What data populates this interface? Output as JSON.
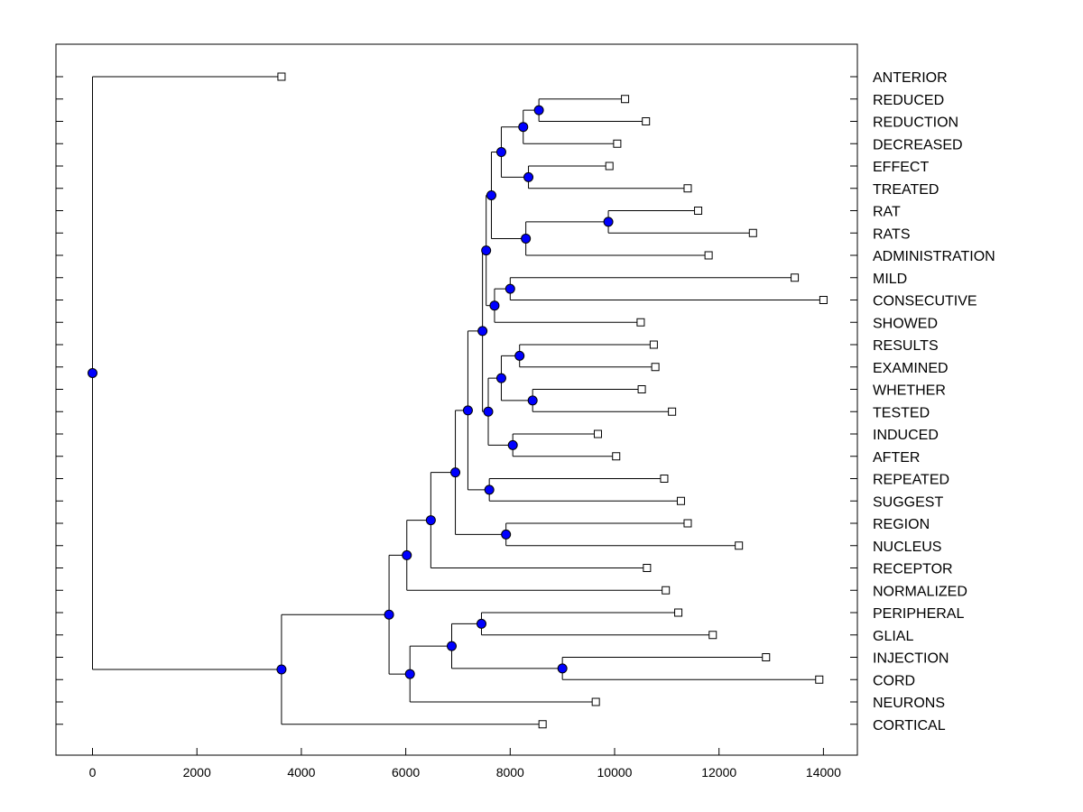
{
  "chart_data": {
    "type": "dendrogram",
    "x_ticks": [
      0,
      2000,
      4000,
      6000,
      8000,
      10000,
      12000,
      14000
    ],
    "x_range": [
      -700,
      14650
    ],
    "node_color": "#0000ff",
    "leaves": [
      {
        "label": "ANTERIOR",
        "x": 3620
      },
      {
        "label": "REDUCED",
        "x": 10200
      },
      {
        "label": "REDUCTION",
        "x": 10600
      },
      {
        "label": "DECREASED",
        "x": 10050
      },
      {
        "label": "EFFECT",
        "x": 9900
      },
      {
        "label": "TREATED",
        "x": 11400
      },
      {
        "label": "RAT",
        "x": 11600
      },
      {
        "label": "RATS",
        "x": 12650
      },
      {
        "label": "ADMINISTRATION",
        "x": 11800
      },
      {
        "label": "MILD",
        "x": 13450
      },
      {
        "label": "CONSECUTIVE",
        "x": 14000
      },
      {
        "label": "SHOWED",
        "x": 10500
      },
      {
        "label": "RESULTS",
        "x": 10750
      },
      {
        "label": "EXAMINED",
        "x": 10780
      },
      {
        "label": "WHETHER",
        "x": 10520
      },
      {
        "label": "TESTED",
        "x": 11100
      },
      {
        "label": "INDUCED",
        "x": 9680
      },
      {
        "label": "AFTER",
        "x": 10030
      },
      {
        "label": "REPEATED",
        "x": 10950
      },
      {
        "label": "SUGGEST",
        "x": 11270
      },
      {
        "label": "REGION",
        "x": 11400
      },
      {
        "label": "NUCLEUS",
        "x": 12380
      },
      {
        "label": "RECEPTOR",
        "x": 10620
      },
      {
        "label": "NORMALIZED",
        "x": 10980
      },
      {
        "label": "PERIPHERAL",
        "x": 11220
      },
      {
        "label": "GLIAL",
        "x": 11880
      },
      {
        "label": "INJECTION",
        "x": 12900
      },
      {
        "label": "CORD",
        "x": 13920
      },
      {
        "label": "NEURONS",
        "x": 9640
      },
      {
        "label": "CORTICAL",
        "x": 8620
      }
    ],
    "merges": [
      {
        "id": "m1",
        "x": 8550,
        "children": [
          "REDUCED",
          "REDUCTION"
        ]
      },
      {
        "id": "m2",
        "x": 8250,
        "children": [
          "m1",
          "DECREASED"
        ]
      },
      {
        "id": "m3",
        "x": 8350,
        "children": [
          "EFFECT",
          "TREATED"
        ]
      },
      {
        "id": "m4",
        "x": 7830,
        "children": [
          "m2",
          "m3"
        ]
      },
      {
        "id": "m5",
        "x": 9880,
        "children": [
          "RAT",
          "RATS"
        ]
      },
      {
        "id": "m6",
        "x": 8300,
        "children": [
          "m5",
          "ADMINISTRATION"
        ]
      },
      {
        "id": "m7",
        "x": 7640,
        "children": [
          "m4",
          "m6"
        ]
      },
      {
        "id": "m8",
        "x": 8000,
        "children": [
          "MILD",
          "CONSECUTIVE"
        ]
      },
      {
        "id": "m9",
        "x": 7700,
        "children": [
          "m8",
          "SHOWED"
        ]
      },
      {
        "id": "m10",
        "x": 7540,
        "children": [
          "m7",
          "m9"
        ]
      },
      {
        "id": "m11",
        "x": 8180,
        "children": [
          "RESULTS",
          "EXAMINED"
        ]
      },
      {
        "id": "m12",
        "x": 8430,
        "children": [
          "WHETHER",
          "TESTED"
        ]
      },
      {
        "id": "m13",
        "x": 7830,
        "children": [
          "m11",
          "m12"
        ]
      },
      {
        "id": "m14",
        "x": 8050,
        "children": [
          "INDUCED",
          "AFTER"
        ]
      },
      {
        "id": "m15",
        "x": 7580,
        "children": [
          "m13",
          "m14"
        ]
      },
      {
        "id": "m16",
        "x": 7470,
        "children": [
          "m10",
          "m15"
        ]
      },
      {
        "id": "m17",
        "x": 7600,
        "children": [
          "REPEATED",
          "SUGGEST"
        ]
      },
      {
        "id": "m18",
        "x": 7190,
        "children": [
          "m16",
          "m17"
        ]
      },
      {
        "id": "m19",
        "x": 7920,
        "children": [
          "REGION",
          "NUCLEUS"
        ]
      },
      {
        "id": "m20",
        "x": 6950,
        "children": [
          "m18",
          "m19"
        ]
      },
      {
        "id": "m21",
        "x": 6480,
        "children": [
          "m20",
          "RECEPTOR"
        ]
      },
      {
        "id": "m22",
        "x": 6020,
        "children": [
          "m21",
          "NORMALIZED"
        ]
      },
      {
        "id": "m23",
        "x": 7450,
        "children": [
          "PERIPHERAL",
          "GLIAL"
        ]
      },
      {
        "id": "m24",
        "x": 9000,
        "children": [
          "INJECTION",
          "CORD"
        ]
      },
      {
        "id": "m25",
        "x": 6880,
        "children": [
          "m23",
          "m24"
        ]
      },
      {
        "id": "m26",
        "x": 6080,
        "children": [
          "m25",
          "NEURONS"
        ]
      },
      {
        "id": "m27",
        "x": 5680,
        "children": [
          "m22",
          "m26"
        ]
      },
      {
        "id": "m28",
        "x": 3620,
        "children": [
          "m27",
          "CORTICAL"
        ]
      },
      {
        "id": "m29",
        "x": 0,
        "children": [
          "ANTERIOR",
          "m28"
        ]
      }
    ]
  }
}
